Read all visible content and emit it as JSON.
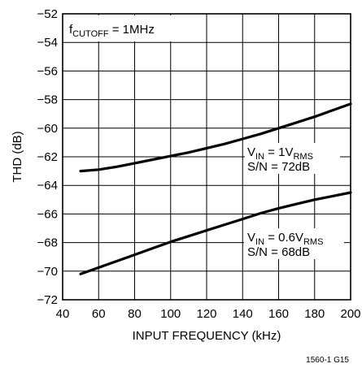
{
  "chart_data": {
    "type": "line",
    "title": "",
    "xlabel": "INPUT FREQUENCY (kHz)",
    "ylabel": "THD (dB)",
    "xlim": [
      40,
      200
    ],
    "ylim": [
      -72,
      -52
    ],
    "x_ticks": [
      40,
      60,
      80,
      100,
      120,
      140,
      160,
      180,
      200
    ],
    "y_ticks": [
      -52,
      -54,
      -56,
      -58,
      -60,
      -62,
      -64,
      -66,
      -68,
      -70,
      -72
    ],
    "x_tick_labels": [
      "40",
      "60",
      "80",
      "100",
      "120",
      "140",
      "160",
      "180",
      "200"
    ],
    "y_tick_labels": [
      "−52",
      "−54",
      "−56",
      "−58",
      "−60",
      "−62",
      "−64",
      "−66",
      "−68",
      "−70",
      "−72"
    ],
    "grid": true,
    "legend": "none",
    "annotation": {
      "cutoff": {
        "main": "f",
        "sub": "CUTOFF",
        "rest": " = 1MHz"
      },
      "curve1": {
        "line1_main": "V",
        "line1_sub1": "IN",
        "line1_mid": " = 1V",
        "line1_sub2": "RMS",
        "line2": "S/N = 72dB"
      },
      "curve2": {
        "line1_main": "V",
        "line1_sub1": "IN",
        "line1_mid": " = 0.6V",
        "line1_sub2": "RMS",
        "line2": "S/N = 68dB"
      }
    },
    "series": [
      {
        "x": [
          50,
          60,
          70,
          80,
          90,
          100,
          110,
          120,
          130,
          140,
          150,
          160,
          170,
          180,
          190,
          200
        ],
        "values": [
          -63.0,
          -62.9,
          -62.7,
          -62.45,
          -62.2,
          -61.95,
          -61.7,
          -61.4,
          -61.1,
          -60.75,
          -60.4,
          -60.0,
          -59.6,
          -59.2,
          -58.75,
          -58.3
        ]
      },
      {
        "x": [
          50,
          60,
          70,
          80,
          90,
          100,
          110,
          120,
          130,
          140,
          150,
          160,
          170,
          180,
          190,
          200
        ],
        "values": [
          -70.2,
          -69.75,
          -69.3,
          -68.85,
          -68.4,
          -67.95,
          -67.55,
          -67.15,
          -66.75,
          -66.35,
          -65.95,
          -65.6,
          -65.3,
          -65.0,
          -64.75,
          -64.5
        ]
      }
    ],
    "line_color": "#000000"
  },
  "figure_id": "1560-1 G15"
}
